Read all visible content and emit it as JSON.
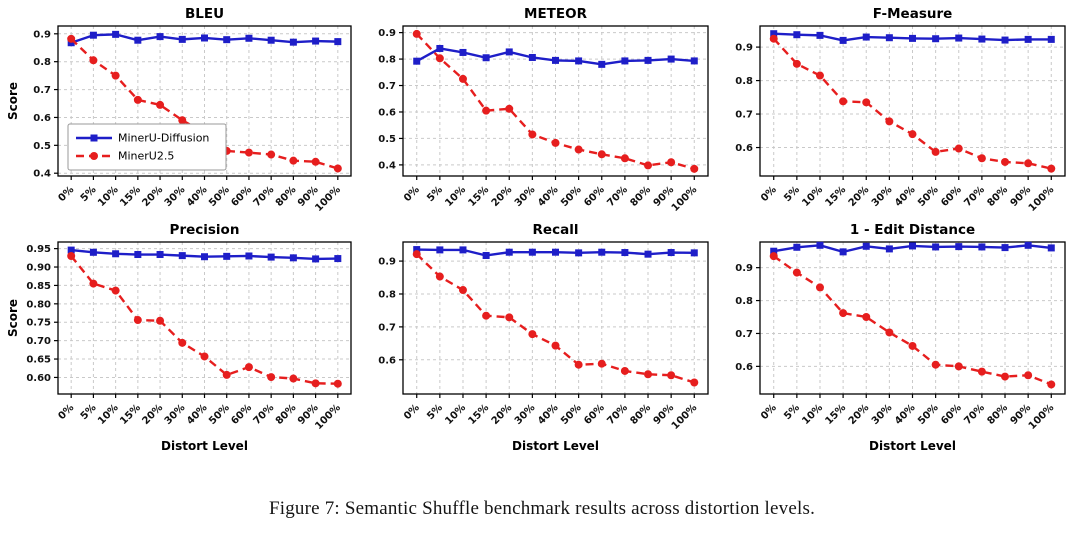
{
  "caption": "Figure 7: Semantic Shuffle benchmark results across distortion levels.",
  "colors": {
    "diffusion_blue": "#1e1ec8",
    "mineru_red": "#e61e1e",
    "grid": "#c9c9c9",
    "axis": "#000000"
  },
  "legend_labels": [
    "MinerU-Diffusion",
    "MinerU2.5"
  ],
  "shared_axis": {
    "ylabel": "Score",
    "xlabel": "Distort Level"
  },
  "chart_data": [
    {
      "type": "line",
      "title": "BLEU",
      "ylabel": "Score",
      "xlabel": "",
      "show_legend": true,
      "grid": true,
      "legend_position": "lower-left",
      "ylim": [
        0.39,
        0.928
      ],
      "ytick_vals": [
        0.4,
        0.5,
        0.6,
        0.7,
        0.8,
        0.9
      ],
      "ytick_labels": [
        "0.4",
        "0.5",
        "0.6",
        "0.7",
        "0.8",
        "0.9"
      ],
      "categories": [
        "0%",
        "5%",
        "10%",
        "15%",
        "20%",
        "30%",
        "40%",
        "50%",
        "60%",
        "70%",
        "80%",
        "90%",
        "100%"
      ],
      "series": [
        {
          "name": "MinerU-Diffusion",
          "color": "#1e1ec8",
          "style": "solid",
          "marker": "square",
          "values": [
            0.868,
            0.895,
            0.898,
            0.877,
            0.89,
            0.88,
            0.885,
            0.879,
            0.884,
            0.877,
            0.87,
            0.874,
            0.872
          ]
        },
        {
          "name": "MinerU2.5",
          "color": "#e61e1e",
          "style": "dashed",
          "marker": "circle",
          "values": [
            0.882,
            0.805,
            0.75,
            0.663,
            0.645,
            0.59,
            0.545,
            0.48,
            0.474,
            0.467,
            0.445,
            0.441,
            0.417
          ]
        }
      ]
    },
    {
      "type": "line",
      "title": "METEOR",
      "ylabel": "",
      "xlabel": "",
      "show_legend": false,
      "grid": true,
      "ylim": [
        0.358,
        0.925
      ],
      "ytick_vals": [
        0.4,
        0.5,
        0.6,
        0.7,
        0.8,
        0.9
      ],
      "ytick_labels": [
        "0.4",
        "0.5",
        "0.6",
        "0.7",
        "0.8",
        "0.9"
      ],
      "categories": [
        "0%",
        "5%",
        "10%",
        "15%",
        "20%",
        "30%",
        "40%",
        "50%",
        "60%",
        "70%",
        "80%",
        "90%",
        "100%"
      ],
      "series": [
        {
          "name": "MinerU-Diffusion",
          "color": "#1e1ec8",
          "style": "solid",
          "marker": "square",
          "values": [
            0.792,
            0.84,
            0.825,
            0.805,
            0.827,
            0.806,
            0.795,
            0.793,
            0.78,
            0.793,
            0.795,
            0.8,
            0.793
          ]
        },
        {
          "name": "MinerU2.5",
          "color": "#e61e1e",
          "style": "dashed",
          "marker": "circle",
          "values": [
            0.895,
            0.803,
            0.725,
            0.605,
            0.612,
            0.515,
            0.483,
            0.458,
            0.44,
            0.425,
            0.398,
            0.41,
            0.385
          ]
        }
      ]
    },
    {
      "type": "line",
      "title": "F-Measure",
      "ylabel": "",
      "xlabel": "",
      "show_legend": false,
      "grid": true,
      "ylim": [
        0.515,
        0.963
      ],
      "ytick_vals": [
        0.6,
        0.7,
        0.8,
        0.9
      ],
      "ytick_labels": [
        "0.6",
        "0.7",
        "0.8",
        "0.9"
      ],
      "categories": [
        "0%",
        "5%",
        "10%",
        "15%",
        "20%",
        "30%",
        "40%",
        "50%",
        "60%",
        "70%",
        "80%",
        "90%",
        "100%"
      ],
      "series": [
        {
          "name": "MinerU-Diffusion",
          "color": "#1e1ec8",
          "style": "solid",
          "marker": "square",
          "values": [
            0.94,
            0.937,
            0.935,
            0.92,
            0.93,
            0.928,
            0.926,
            0.925,
            0.927,
            0.924,
            0.921,
            0.923,
            0.923
          ]
        },
        {
          "name": "MinerU2.5",
          "color": "#e61e1e",
          "style": "dashed",
          "marker": "circle",
          "values": [
            0.925,
            0.85,
            0.815,
            0.738,
            0.735,
            0.678,
            0.64,
            0.587,
            0.597,
            0.568,
            0.557,
            0.553,
            0.537
          ]
        }
      ]
    },
    {
      "type": "line",
      "title": "Precision",
      "ylabel": "Score",
      "xlabel": "Distort Level",
      "show_legend": false,
      "grid": true,
      "ylim": [
        0.555,
        0.968
      ],
      "ytick_vals": [
        0.6,
        0.65,
        0.7,
        0.75,
        0.8,
        0.85,
        0.9,
        0.95
      ],
      "ytick_labels": [
        "0.60",
        "0.65",
        "0.70",
        "0.75",
        "0.80",
        "0.85",
        "0.90",
        "0.95"
      ],
      "categories": [
        "0%",
        "5%",
        "10%",
        "15%",
        "20%",
        "30%",
        "40%",
        "50%",
        "60%",
        "70%",
        "80%",
        "90%",
        "100%"
      ],
      "series": [
        {
          "name": "MinerU-Diffusion",
          "color": "#1e1ec8",
          "style": "solid",
          "marker": "square",
          "values": [
            0.946,
            0.94,
            0.936,
            0.934,
            0.934,
            0.931,
            0.928,
            0.929,
            0.93,
            0.927,
            0.925,
            0.922,
            0.923
          ]
        },
        {
          "name": "MinerU2.5",
          "color": "#e61e1e",
          "style": "dashed",
          "marker": "circle",
          "values": [
            0.93,
            0.855,
            0.836,
            0.756,
            0.754,
            0.694,
            0.657,
            0.607,
            0.628,
            0.601,
            0.597,
            0.584,
            0.583
          ]
        }
      ]
    },
    {
      "type": "line",
      "title": "Recall",
      "ylabel": "",
      "xlabel": "Distort Level",
      "show_legend": false,
      "grid": true,
      "ylim": [
        0.496,
        0.958
      ],
      "ytick_vals": [
        0.6,
        0.7,
        0.8,
        0.9
      ],
      "ytick_labels": [
        "0.6",
        "0.7",
        "0.8",
        "0.9"
      ],
      "categories": [
        "0%",
        "5%",
        "10%",
        "15%",
        "20%",
        "30%",
        "40%",
        "50%",
        "60%",
        "70%",
        "80%",
        "90%",
        "100%"
      ],
      "series": [
        {
          "name": "MinerU-Diffusion",
          "color": "#1e1ec8",
          "style": "solid",
          "marker": "square",
          "values": [
            0.935,
            0.934,
            0.934,
            0.917,
            0.927,
            0.927,
            0.927,
            0.925,
            0.927,
            0.926,
            0.921,
            0.926,
            0.925
          ]
        },
        {
          "name": "MinerU2.5",
          "color": "#e61e1e",
          "style": "dashed",
          "marker": "circle",
          "values": [
            0.921,
            0.853,
            0.812,
            0.734,
            0.729,
            0.678,
            0.643,
            0.585,
            0.588,
            0.566,
            0.556,
            0.553,
            0.531
          ]
        }
      ]
    },
    {
      "type": "line",
      "title": "1 - Edit Distance",
      "ylabel": "",
      "xlabel": "Distort Level",
      "show_legend": false,
      "grid": true,
      "ylim": [
        0.516,
        0.978
      ],
      "ytick_vals": [
        0.6,
        0.7,
        0.8,
        0.9
      ],
      "ytick_labels": [
        "0.6",
        "0.7",
        "0.8",
        "0.9"
      ],
      "categories": [
        "0%",
        "5%",
        "10%",
        "15%",
        "20%",
        "30%",
        "40%",
        "50%",
        "60%",
        "70%",
        "80%",
        "90%",
        "100%"
      ],
      "series": [
        {
          "name": "MinerU-Diffusion",
          "color": "#1e1ec8",
          "style": "solid",
          "marker": "square",
          "values": [
            0.95,
            0.962,
            0.968,
            0.948,
            0.965,
            0.957,
            0.966,
            0.963,
            0.964,
            0.963,
            0.961,
            0.968,
            0.96
          ]
        },
        {
          "name": "MinerU2.5",
          "color": "#e61e1e",
          "style": "dashed",
          "marker": "circle",
          "values": [
            0.935,
            0.885,
            0.84,
            0.762,
            0.75,
            0.703,
            0.662,
            0.605,
            0.6,
            0.584,
            0.569,
            0.573,
            0.545
          ]
        }
      ]
    }
  ]
}
